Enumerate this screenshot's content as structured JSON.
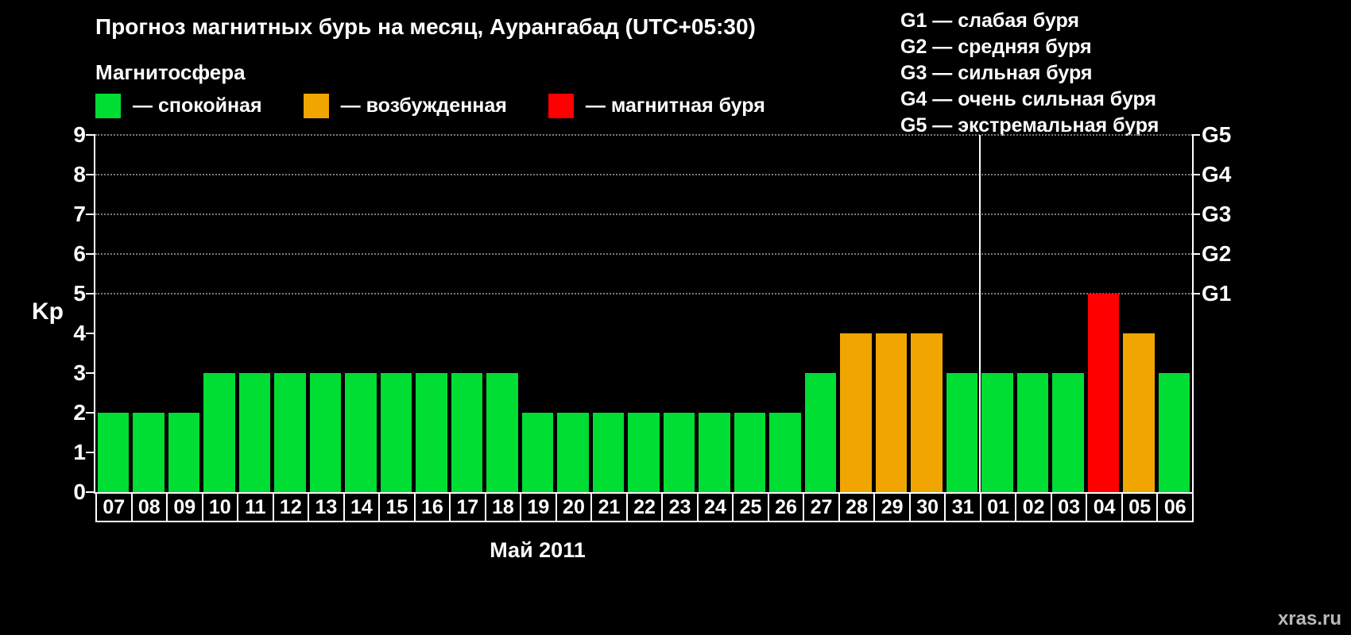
{
  "page": {
    "title": "Прогноз магнитных бурь на месяц, Аурангабад (UTC+05:30)",
    "watermark": "xras.ru"
  },
  "legend": {
    "title": "Магнитосфера",
    "items": [
      {
        "label": "— спокойная",
        "color": "#00dd33"
      },
      {
        "label": "— возбужденная",
        "color": "#f0a500"
      },
      {
        "label": "— магнитная буря",
        "color": "#ff0000"
      }
    ]
  },
  "g_legend": {
    "items": [
      "G1 — слабая буря",
      "G2 — средняя буря",
      "G3 — сильная буря",
      "G4 — очень сильная буря",
      "G5 — экстремальная буря"
    ]
  },
  "chart_data": {
    "type": "bar",
    "title": "Прогноз магнитных бурь на месяц, Аурангабад (UTC+05:30)",
    "xlabel": "Май 2011",
    "ylabel": "Kp",
    "ylim": [
      0,
      9
    ],
    "y_ticks": [
      0,
      1,
      2,
      3,
      4,
      5,
      6,
      7,
      8,
      9
    ],
    "categories": [
      "07",
      "08",
      "09",
      "10",
      "11",
      "12",
      "13",
      "14",
      "15",
      "16",
      "17",
      "18",
      "19",
      "20",
      "21",
      "22",
      "23",
      "24",
      "25",
      "26",
      "27",
      "28",
      "29",
      "30",
      "31",
      "01",
      "02",
      "03",
      "04",
      "05",
      "06"
    ],
    "values": [
      2,
      2,
      2,
      3,
      3,
      3,
      3,
      3,
      3,
      3,
      3,
      3,
      2,
      2,
      2,
      2,
      2,
      2,
      2,
      2,
      3,
      4,
      4,
      4,
      3,
      3,
      3,
      3,
      5,
      4,
      3
    ],
    "right_axis": [
      {
        "kp": 5,
        "label": "G1"
      },
      {
        "kp": 6,
        "label": "G2"
      },
      {
        "kp": 7,
        "label": "G3"
      },
      {
        "kp": 8,
        "label": "G4"
      },
      {
        "kp": 9,
        "label": "G5"
      }
    ],
    "month_separator_after_index": 24,
    "bar_colors": {
      "quiet": "#00dd33",
      "excited": "#f0a500",
      "storm": "#ff0000"
    },
    "color_rules": {
      "quiet_max": 3,
      "excited_max": 4
    },
    "legend_position": "top-left",
    "grid": "dotted horizontal at G levels"
  }
}
